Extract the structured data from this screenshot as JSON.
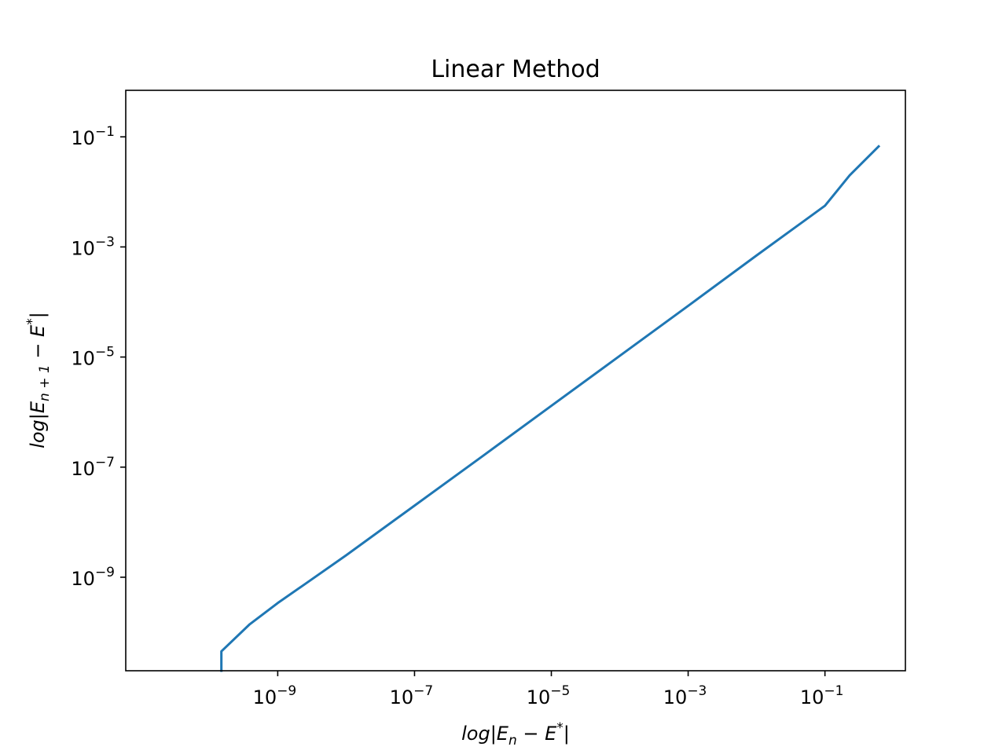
{
  "chart_data": {
    "type": "line",
    "title": "Linear Method",
    "xlabel": "log|E_n - E^*|",
    "ylabel": "log|E_n+1 - E^*|",
    "x_scale": "log",
    "y_scale": "log",
    "xlim": [
      6e-12,
      1.5
    ],
    "ylim": [
      2e-11,
      0.7
    ],
    "x_ticks": [
      {
        "base": "10",
        "exp": "−9",
        "value": 1e-09
      },
      {
        "base": "10",
        "exp": "−7",
        "value": 1e-07
      },
      {
        "base": "10",
        "exp": "−5",
        "value": 1e-05
      },
      {
        "base": "10",
        "exp": "−3",
        "value": 0.001
      },
      {
        "base": "10",
        "exp": "−1",
        "value": 0.1
      }
    ],
    "y_ticks": [
      {
        "base": "10",
        "exp": "−1",
        "value": 0.1
      },
      {
        "base": "10",
        "exp": "−3",
        "value": 0.001
      },
      {
        "base": "10",
        "exp": "−5",
        "value": 1e-05
      },
      {
        "base": "10",
        "exp": "−7",
        "value": 1e-07
      },
      {
        "base": "10",
        "exp": "−9",
        "value": 1e-09
      }
    ],
    "grid": false,
    "series": [
      {
        "color": "#1f77b4",
        "x": [
          1.5e-10,
          1.5e-10,
          3.9e-10,
          1e-09,
          2.5e-09,
          1e-08,
          1e-07,
          1e-06,
          1e-05,
          0.0001,
          0.001,
          0.01,
          0.1,
          0.23,
          0.61
        ],
        "y": [
          2e-11,
          4.5e-11,
          1.4e-10,
          3.4e-10,
          7.5e-10,
          2.5e-09,
          2e-08,
          1.6e-07,
          1.3e-06,
          1.05e-05,
          8.5e-05,
          0.0007,
          0.0056,
          0.02,
          0.067
        ]
      }
    ]
  }
}
